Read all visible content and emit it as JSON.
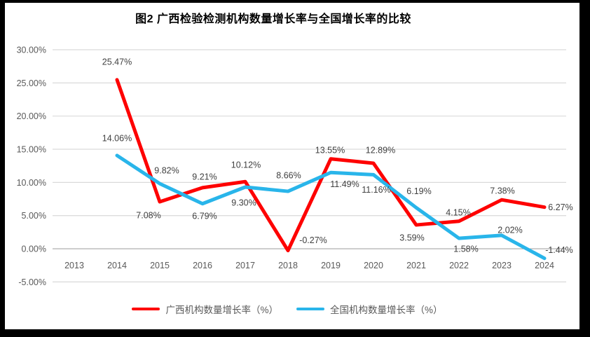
{
  "title": "图2 广西检验检测机构数量增长率与全国增长率的比较",
  "chart_data": {
    "type": "line",
    "categories": [
      "2013",
      "2014",
      "2015",
      "2016",
      "2017",
      "2018",
      "2019",
      "2020",
      "2021",
      "2022",
      "2023",
      "2024"
    ],
    "series": [
      {
        "name": "广西机构数量增长率（%）",
        "color": "#FE0000",
        "values": [
          null,
          25.47,
          7.08,
          9.21,
          10.12,
          -0.27,
          13.55,
          12.89,
          3.59,
          4.15,
          7.38,
          6.27
        ],
        "label_offsets": [
          [
            0,
            0
          ],
          [
            0,
            -26
          ],
          [
            -16,
            19
          ],
          [
            3,
            -16
          ],
          [
            1,
            -24
          ],
          [
            36,
            -15
          ],
          [
            -1,
            -13
          ],
          [
            10,
            -19
          ],
          [
            -6,
            18
          ],
          [
            -1,
            -13
          ],
          [
            1,
            -13
          ],
          [
            23,
            0
          ]
        ]
      },
      {
        "name": "全国机构数量增长率（%）",
        "color": "#29B5EA",
        "values": [
          null,
          14.06,
          9.82,
          6.79,
          9.3,
          8.66,
          11.49,
          11.16,
          6.19,
          1.58,
          2.02,
          -1.44
        ],
        "label_offsets": [
          [
            0,
            0
          ],
          [
            0,
            -25
          ],
          [
            10,
            -19
          ],
          [
            3,
            17
          ],
          [
            -2,
            22
          ],
          [
            1,
            -23
          ],
          [
            20,
            16
          ],
          [
            4,
            21
          ],
          [
            4,
            -24
          ],
          [
            10,
            15
          ],
          [
            12,
            -8
          ],
          [
            21,
            -12
          ]
        ]
      }
    ],
    "ylim": [
      -5,
      30
    ],
    "y_ticks": [
      {
        "value": 30,
        "label": "30.00%"
      },
      {
        "value": 25,
        "label": "25.00%"
      },
      {
        "value": 20,
        "label": "20.00%"
      },
      {
        "value": 15,
        "label": "15.00%"
      },
      {
        "value": 10,
        "label": "10.00%"
      },
      {
        "value": 5,
        "label": "5.00%"
      },
      {
        "value": 0,
        "label": "0.00%"
      },
      {
        "value": -5,
        "label": "-5.00%"
      }
    ],
    "label_format": "0.00%",
    "grid": true,
    "grid_color": "#D9D9D9",
    "axis_color": "#A6A6A6",
    "legend_position": "bottom"
  }
}
